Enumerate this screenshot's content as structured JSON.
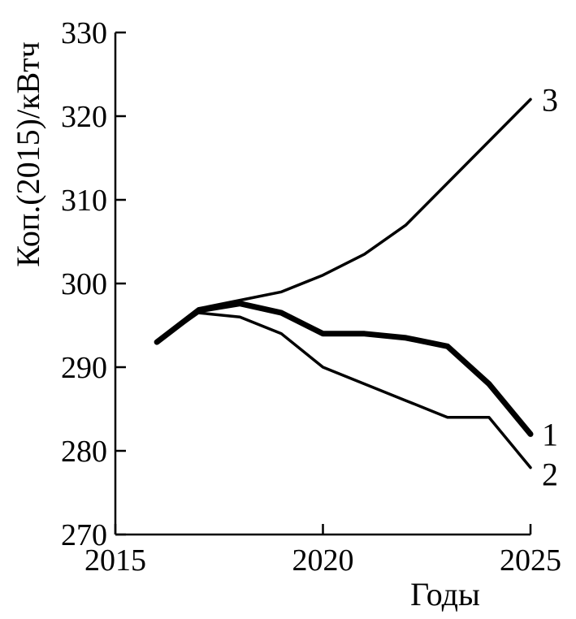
{
  "chart_data": {
    "type": "line",
    "title": "",
    "xlabel": "Годы",
    "ylabel": "Коп.(2015)/кВтч",
    "xlim": [
      2015,
      2025
    ],
    "ylim": [
      270,
      330
    ],
    "x_ticks": [
      "2015",
      "2020",
      "2025"
    ],
    "y_ticks": [
      "270",
      "280",
      "290",
      "300",
      "310",
      "320",
      "330"
    ],
    "x_tick_values": [
      2015,
      2020,
      2025
    ],
    "y_tick_values": [
      270,
      280,
      290,
      300,
      310,
      320,
      330
    ],
    "grid": false,
    "legend": "none",
    "series": [
      {
        "name": "1",
        "stroke": "#000000",
        "line_weight": "bold",
        "x": [
          2016,
          2017,
          2018,
          2019,
          2020,
          2021,
          2022,
          2023,
          2024,
          2025
        ],
        "y": [
          293,
          296.8,
          297.6,
          296.5,
          294,
          294,
          293.5,
          292.5,
          288,
          282
        ]
      },
      {
        "name": "2",
        "stroke": "#000000",
        "line_weight": "normal",
        "x": [
          2016,
          2017,
          2018,
          2019,
          2020,
          2021,
          2022,
          2023,
          2024,
          2025
        ],
        "y": [
          293,
          296.5,
          296,
          294,
          290,
          288,
          286,
          284,
          284,
          278
        ]
      },
      {
        "name": "3",
        "stroke": "#000000",
        "line_weight": "normal",
        "x": [
          2016,
          2017,
          2018,
          2019,
          2020,
          2021,
          2022,
          2023,
          2024,
          2025
        ],
        "y": [
          293,
          297,
          298,
          299,
          301,
          303.5,
          307,
          312,
          317,
          322
        ]
      }
    ]
  }
}
